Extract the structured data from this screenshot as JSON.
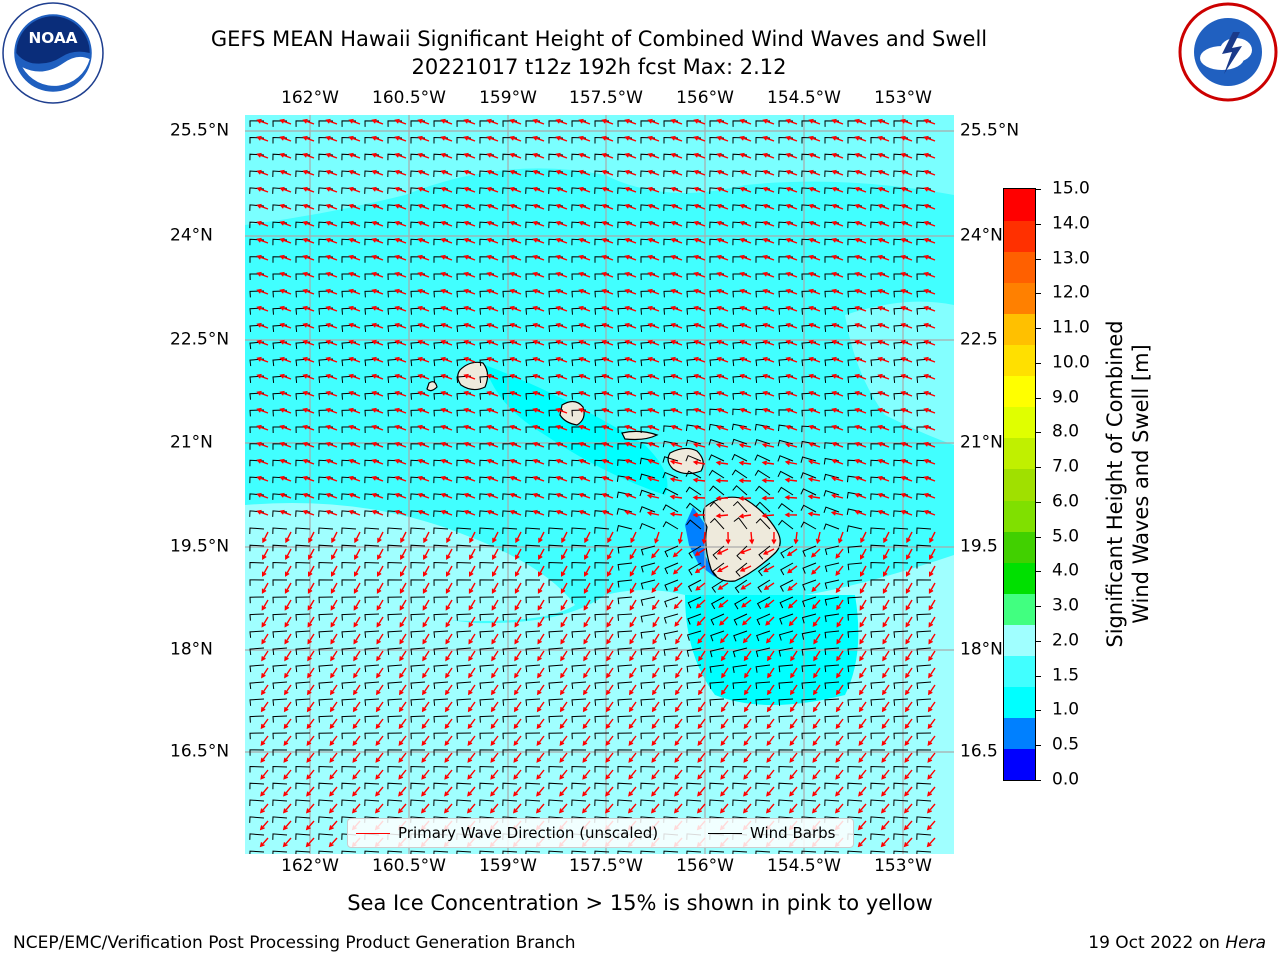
{
  "title": {
    "line1": "GEFS MEAN Hawaii Significant Height of Combined Wind Waves and Swell",
    "line2": "20221017 t12z 192h fcst   Max: 2.12"
  },
  "logos": {
    "left": "noaa-logo",
    "right": "national-weather-service-logo",
    "left_text": "NOAA"
  },
  "map": {
    "lon_labels": [
      "162°W",
      "160.5°W",
      "159°W",
      "157.5°W",
      "156°W",
      "154.5°W",
      "153°W"
    ],
    "lat_labels_left": [
      "25.5°N",
      "24°N",
      "22.5°N",
      "21°N",
      "19.5°N",
      "18°N",
      "16.5°N"
    ],
    "lat_labels_right": [
      "25.5°N",
      "24°N",
      "22.5",
      "21°N",
      "19.5",
      "18°N",
      "16.5"
    ],
    "field_colors": {
      "main": "#41FFFF",
      "light": "#A0FFFF",
      "cyan": "#00FFFF",
      "blue": "#0080FF",
      "land": "#EEEADC"
    },
    "arrow_color": "#FF0000",
    "barb_color": "#000000"
  },
  "legend": {
    "wave_label": "Primary Wave Direction (unscaled)",
    "barb_label": "Wind Barbs"
  },
  "colorbar": {
    "label_line1": "Significant Height of Combined",
    "label_line2": "Wind Waves and Swell [m]",
    "ticks": [
      "15.0",
      "14.0",
      "13.0",
      "12.0",
      "11.0",
      "10.0",
      "9.0",
      "8.0",
      "7.0",
      "6.0",
      "5.0",
      "4.0",
      "3.0",
      "2.0",
      "1.5",
      "1.0",
      "0.5",
      "0.0"
    ],
    "colors": [
      "#0000FF",
      "#0080FF",
      "#00FFFF",
      "#41FFFF",
      "#A0FFFF",
      "#41FF80",
      "#00E000",
      "#41D000",
      "#80E000",
      "#A0E000",
      "#C0F000",
      "#E0FF00",
      "#FFFF00",
      "#FFE000",
      "#FFC000",
      "#FF8000",
      "#FF6000",
      "#FF3000",
      "#FF0000"
    ]
  },
  "note": "Sea Ice Concentration > 15% is shown in pink to yellow",
  "footer": {
    "left": "NCEP/EMC/Verification Post Processing Product Generation Branch",
    "date": "19 Oct 2022 on ",
    "machine": "Hera"
  }
}
